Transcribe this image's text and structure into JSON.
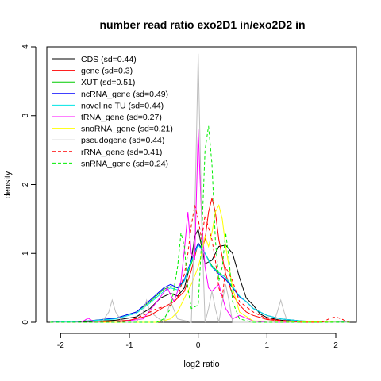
{
  "chart_data": {
    "type": "line",
    "title": "number read ratio exo2D1 in/exo2D2 in",
    "xlabel": "log2 ratio",
    "ylabel": "density",
    "xlim": [
      -2.2,
      2.3
    ],
    "ylim": [
      0,
      4.0
    ],
    "xticks": [
      -2,
      -1,
      0,
      1,
      2
    ],
    "yticks": [
      0,
      1,
      2,
      3,
      4
    ],
    "grid": false,
    "legend_position": "top-left",
    "series": [
      {
        "name": "CDS (sd=0.44)",
        "color": "#000000",
        "dash": "solid",
        "x": [
          -2.15,
          -1.6,
          -1.2,
          -0.9,
          -0.7,
          -0.55,
          -0.4,
          -0.3,
          -0.2,
          -0.1,
          -0.05,
          0.0,
          0.05,
          0.1,
          0.2,
          0.3,
          0.4,
          0.5,
          0.6,
          0.7,
          0.8,
          0.9,
          1.0,
          1.2,
          1.5,
          2.2
        ],
        "y": [
          0.0,
          0.01,
          0.03,
          0.08,
          0.2,
          0.35,
          0.42,
          0.38,
          0.5,
          0.9,
          1.25,
          1.35,
          1.1,
          0.85,
          0.9,
          1.1,
          1.12,
          1.0,
          0.65,
          0.35,
          0.25,
          0.12,
          0.07,
          0.03,
          0.01,
          0.0
        ]
      },
      {
        "name": "gene (sd=0.3)",
        "color": "#ff0000",
        "dash": "solid",
        "x": [
          -2.15,
          -1.5,
          -1.0,
          -0.7,
          -0.5,
          -0.35,
          -0.2,
          -0.1,
          0.0,
          0.05,
          0.1,
          0.15,
          0.2,
          0.25,
          0.3,
          0.4,
          0.5,
          0.6,
          0.7,
          0.8,
          1.0,
          1.3,
          2.2
        ],
        "y": [
          0.0,
          0.0,
          0.03,
          0.1,
          0.22,
          0.3,
          0.45,
          0.75,
          1.15,
          1.05,
          1.2,
          1.6,
          1.8,
          1.6,
          1.2,
          0.7,
          0.4,
          0.25,
          0.15,
          0.1,
          0.04,
          0.01,
          0.0
        ]
      },
      {
        "name": "XUT (sd=0.51)",
        "color": "#00cc00",
        "dash": "solid",
        "x": [
          -2.15,
          -1.6,
          -1.2,
          -0.9,
          -0.7,
          -0.5,
          -0.4,
          -0.3,
          -0.2,
          -0.1,
          0.0,
          0.1,
          0.2,
          0.3,
          0.4,
          0.5,
          0.6,
          0.7,
          0.8,
          1.0,
          1.2,
          1.5,
          2.2
        ],
        "y": [
          0.0,
          0.02,
          0.06,
          0.15,
          0.3,
          0.48,
          0.52,
          0.5,
          0.6,
          0.85,
          1.15,
          1.0,
          0.82,
          0.72,
          0.65,
          0.5,
          0.38,
          0.3,
          0.2,
          0.1,
          0.05,
          0.02,
          0.0
        ]
      },
      {
        "name": "ncRNA_gene (sd=0.49)",
        "color": "#0000ff",
        "dash": "solid",
        "x": [
          -2.15,
          -1.6,
          -1.2,
          -0.9,
          -0.7,
          -0.5,
          -0.4,
          -0.3,
          -0.2,
          -0.1,
          0.0,
          0.1,
          0.2,
          0.3,
          0.4,
          0.5,
          0.6,
          0.7,
          0.8,
          1.0,
          1.2,
          1.5,
          2.2
        ],
        "y": [
          0.0,
          0.02,
          0.06,
          0.15,
          0.32,
          0.5,
          0.55,
          0.5,
          0.62,
          0.9,
          1.15,
          1.0,
          0.8,
          0.7,
          0.62,
          0.5,
          0.37,
          0.3,
          0.2,
          0.1,
          0.05,
          0.02,
          0.0
        ]
      },
      {
        "name": "novel nc-TU (sd=0.44)",
        "color": "#00e5e5",
        "dash": "solid",
        "x": [
          -2.15,
          -1.6,
          -1.2,
          -0.9,
          -0.7,
          -0.5,
          -0.4,
          -0.3,
          -0.2,
          -0.1,
          0.0,
          0.1,
          0.2,
          0.3,
          0.4,
          0.5,
          0.6,
          0.7,
          0.8,
          1.0,
          1.2,
          1.5,
          2.2
        ],
        "y": [
          0.0,
          0.02,
          0.05,
          0.13,
          0.28,
          0.45,
          0.5,
          0.47,
          0.6,
          0.88,
          1.12,
          1.0,
          0.8,
          0.72,
          0.65,
          0.52,
          0.38,
          0.3,
          0.2,
          0.1,
          0.05,
          0.02,
          0.0
        ]
      },
      {
        "name": "tRNA_gene (sd=0.27)",
        "color": "#ff00ff",
        "dash": "solid",
        "x": [
          -2.15,
          -1.7,
          -1.6,
          -1.5,
          -1.2,
          -0.8,
          -0.6,
          -0.45,
          -0.35,
          -0.25,
          -0.2,
          -0.15,
          -0.1,
          -0.05,
          0.0,
          0.05,
          0.1,
          0.15,
          0.2,
          0.3,
          0.4,
          0.5,
          0.6,
          0.8,
          1.0,
          2.2
        ],
        "y": [
          0.0,
          0.0,
          0.06,
          0.0,
          0.0,
          0.05,
          0.3,
          0.5,
          0.3,
          0.6,
          1.05,
          1.6,
          1.0,
          0.9,
          2.8,
          1.5,
          0.8,
          0.5,
          0.45,
          0.55,
          0.2,
          0.05,
          0.1,
          0.02,
          0.0,
          0.0
        ]
      },
      {
        "name": "snoRNA_gene (sd=0.21)",
        "color": "#ffff00",
        "dash": "solid",
        "x": [
          -2.15,
          -0.6,
          -0.4,
          -0.3,
          -0.2,
          -0.1,
          0.0,
          0.05,
          0.1,
          0.15,
          0.2,
          0.25,
          0.3,
          0.35,
          0.4,
          0.5,
          0.6,
          0.8,
          2.2
        ],
        "y": [
          0.0,
          0.0,
          0.05,
          0.15,
          0.35,
          0.55,
          0.8,
          1.0,
          1.25,
          1.1,
          1.3,
          1.6,
          1.7,
          1.5,
          1.1,
          0.5,
          0.15,
          0.02,
          0.0
        ]
      },
      {
        "name": "pseudogene (sd=0.44)",
        "color": "#bebebe",
        "dash": "solid",
        "x": [
          -2.15,
          -1.4,
          -1.3,
          -1.25,
          -1.2,
          -1.1,
          -0.9,
          -0.8,
          -0.75,
          -0.7,
          -0.5,
          -0.45,
          -0.4,
          -0.3,
          -0.1,
          -0.05,
          0.0,
          0.05,
          0.1,
          0.15,
          0.2,
          0.25,
          0.3,
          0.35,
          0.4,
          0.45,
          0.5,
          0.7,
          1.1,
          1.15,
          1.2,
          1.25,
          1.3,
          2.2
        ],
        "y": [
          0.0,
          0.0,
          0.15,
          0.32,
          0.15,
          0.0,
          0.0,
          0.15,
          0.32,
          0.15,
          0.0,
          0.15,
          0.3,
          0.05,
          0.0,
          1.5,
          3.9,
          1.5,
          0.0,
          0.2,
          0.45,
          0.2,
          0.0,
          0.3,
          0.55,
          0.3,
          0.0,
          0.0,
          0.0,
          0.15,
          0.32,
          0.15,
          0.0,
          0.0
        ]
      },
      {
        "name": "rRNA_gene (sd=0.41)",
        "color": "#ff0000",
        "dash": "dashed",
        "x": [
          -2.15,
          -1.2,
          -1.0,
          -0.8,
          -0.6,
          -0.4,
          -0.3,
          -0.2,
          -0.15,
          -0.1,
          -0.05,
          0.0,
          0.05,
          0.1,
          0.2,
          0.25,
          0.3,
          0.35,
          0.4,
          0.5,
          0.6,
          0.8,
          1.0,
          1.5,
          1.8,
          1.9,
          2.0,
          2.1,
          2.2
        ],
        "y": [
          0.0,
          0.0,
          0.02,
          0.1,
          0.2,
          0.25,
          0.35,
          0.7,
          1.0,
          1.4,
          1.7,
          1.5,
          1.2,
          1.55,
          1.2,
          0.9,
          0.5,
          0.35,
          0.8,
          0.6,
          0.3,
          0.15,
          0.05,
          0.0,
          0.0,
          0.05,
          0.08,
          0.04,
          0.0
        ]
      },
      {
        "name": "snRNA_gene (sd=0.24)",
        "color": "#00ee00",
        "dash": "dashed",
        "x": [
          -2.15,
          -0.6,
          -0.5,
          -0.4,
          -0.3,
          -0.25,
          -0.2,
          -0.15,
          -0.1,
          0.0,
          0.05,
          0.1,
          0.15,
          0.2,
          0.25,
          0.3,
          0.35,
          0.4,
          0.45,
          0.5,
          0.6,
          0.8,
          2.2
        ],
        "y": [
          0.0,
          0.0,
          0.05,
          0.2,
          0.8,
          1.3,
          1.1,
          0.5,
          0.2,
          0.25,
          1.2,
          2.5,
          2.85,
          2.3,
          1.2,
          0.6,
          0.8,
          1.3,
          0.9,
          0.3,
          0.05,
          0.0,
          0.0
        ]
      }
    ]
  }
}
